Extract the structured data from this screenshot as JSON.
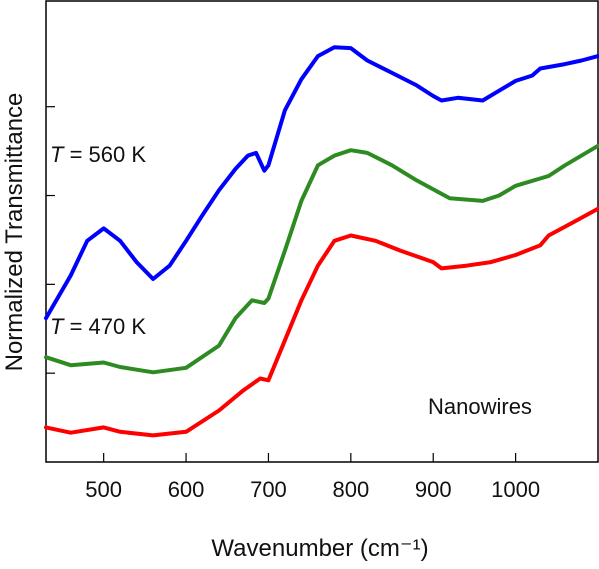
{
  "chart_data": {
    "type": "line",
    "x_label": "Wavenumber (cm⁻¹)",
    "y_label": "Normalized Transmittance",
    "annotations": [
      {
        "italic": "T",
        "text": " = 560 K"
      },
      {
        "italic": "T",
        "text": " = 470 K"
      },
      {
        "text": "Nanowires"
      }
    ],
    "xlim": [
      430,
      1100
    ],
    "xticks": [
      500,
      600,
      700,
      800,
      900,
      1000
    ],
    "ylim": [
      0,
      5.19
    ],
    "yticks": [
      1,
      2,
      3,
      4
    ],
    "series": [
      {
        "name": "T = 560 K",
        "color": "#0000ff",
        "x": [
          430,
          460,
          480,
          500,
          520,
          540,
          560,
          580,
          600,
          620,
          640,
          660,
          675,
          685,
          695,
          700,
          720,
          740,
          760,
          780,
          800,
          820,
          850,
          880,
          900,
          910,
          930,
          960,
          980,
          1000,
          1020,
          1030,
          1060,
          1080,
          1100
        ],
        "values": [
          1.62,
          2.1,
          2.49,
          2.63,
          2.49,
          2.25,
          2.06,
          2.21,
          2.49,
          2.78,
          3.06,
          3.3,
          3.45,
          3.48,
          3.28,
          3.34,
          3.96,
          4.31,
          4.57,
          4.67,
          4.66,
          4.52,
          4.38,
          4.24,
          4.12,
          4.07,
          4.1,
          4.07,
          4.18,
          4.29,
          4.35,
          4.43,
          4.48,
          4.52,
          4.57
        ]
      },
      {
        "name": "T = 470 K",
        "color": "#2e8b22",
        "x": [
          430,
          460,
          500,
          520,
          560,
          600,
          640,
          660,
          680,
          695,
          700,
          720,
          740,
          760,
          780,
          800,
          820,
          850,
          880,
          920,
          960,
          980,
          1000,
          1040,
          1060,
          1100
        ],
        "values": [
          1.18,
          1.09,
          1.12,
          1.07,
          1.01,
          1.06,
          1.31,
          1.62,
          1.82,
          1.79,
          1.84,
          2.38,
          2.94,
          3.34,
          3.45,
          3.51,
          3.48,
          3.34,
          3.17,
          2.97,
          2.94,
          3.0,
          3.11,
          3.22,
          3.34,
          3.56
        ]
      },
      {
        "name": "Nanowires",
        "color": "#ff0000",
        "x": [
          430,
          460,
          500,
          520,
          560,
          600,
          640,
          670,
          690,
          700,
          720,
          740,
          760,
          780,
          800,
          830,
          860,
          900,
          910,
          940,
          970,
          1000,
          1030,
          1040,
          1070,
          1100
        ],
        "values": [
          0.39,
          0.33,
          0.39,
          0.34,
          0.3,
          0.34,
          0.58,
          0.81,
          0.94,
          0.92,
          1.37,
          1.82,
          2.21,
          2.49,
          2.55,
          2.49,
          2.38,
          2.25,
          2.18,
          2.21,
          2.25,
          2.33,
          2.44,
          2.55,
          2.7,
          2.85
        ]
      }
    ]
  }
}
